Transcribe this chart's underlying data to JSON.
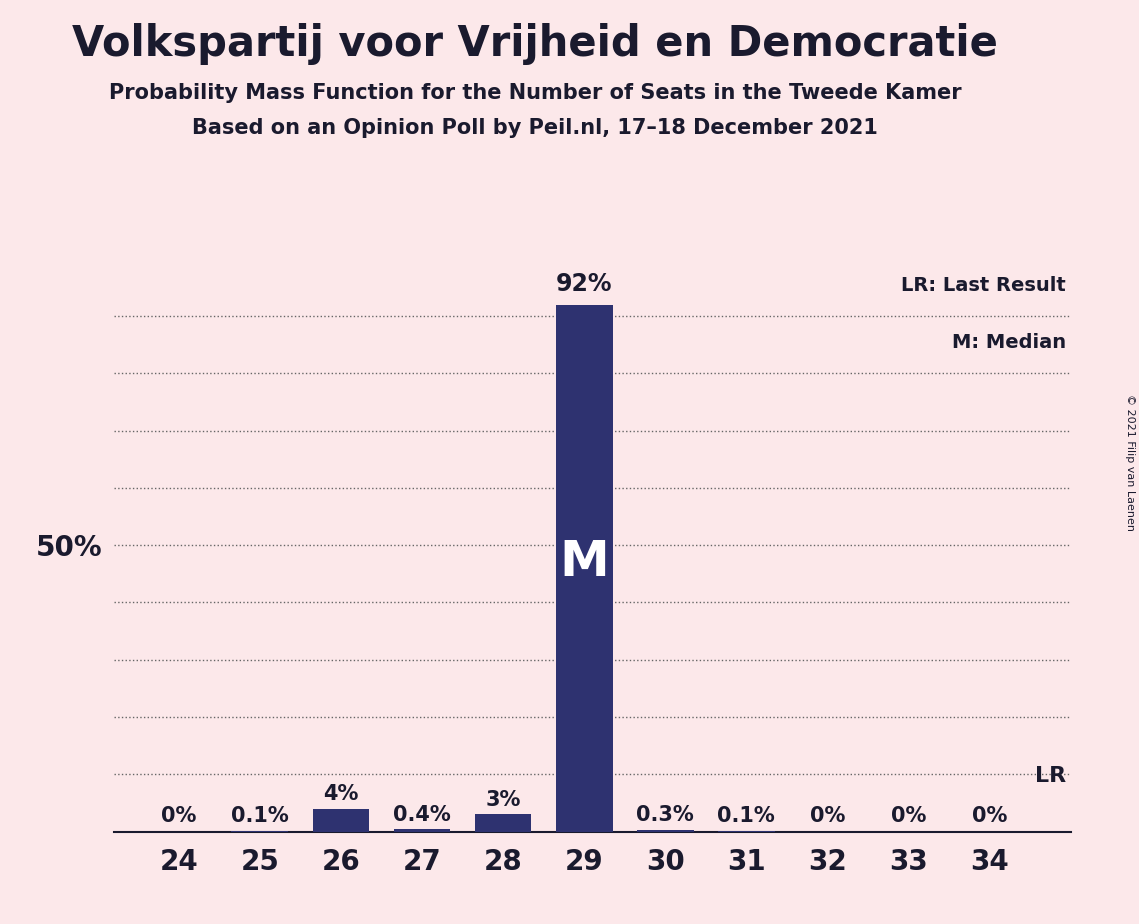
{
  "title": "Volkspartij voor Vrijheid en Democratie",
  "subtitle1": "Probability Mass Function for the Number of Seats in the Tweede Kamer",
  "subtitle2": "Based on an Opinion Poll by Peil.nl, 17–18 December 2021",
  "copyright": "© 2021 Filip van Laenen",
  "seats": [
    24,
    25,
    26,
    27,
    28,
    29,
    30,
    31,
    32,
    33,
    34
  ],
  "probabilities": [
    0.0,
    0.1,
    4.0,
    0.4,
    3.0,
    92.0,
    0.3,
    0.1,
    0.0,
    0.0,
    0.0
  ],
  "labels": [
    "0%",
    "0.1%",
    "4%",
    "0.4%",
    "3%",
    "92%",
    "0.3%",
    "0.1%",
    "0%",
    "0%",
    "0%"
  ],
  "median_seat": 29,
  "bar_color": "#2e3270",
  "background_color": "#fce8ea",
  "ylabel_text": "50%",
  "ylabel_value": 50,
  "ylim": [
    0,
    100
  ],
  "grid_ticks": [
    10,
    20,
    30,
    40,
    50,
    60,
    70,
    80,
    90
  ],
  "legend_lr": "LR: Last Result",
  "legend_m": "M: Median",
  "lr_label": "LR",
  "title_fontsize": 30,
  "subtitle_fontsize": 15,
  "label_fontsize": 15,
  "tick_fontsize": 20,
  "xlim_left": 23.2,
  "xlim_right": 35.0
}
